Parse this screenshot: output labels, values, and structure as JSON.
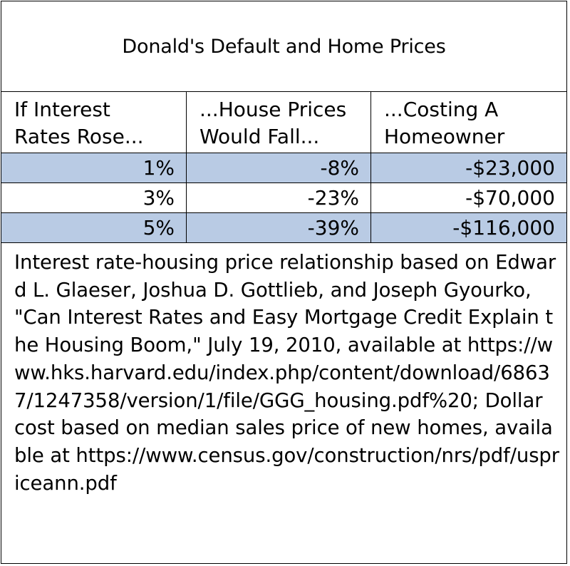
{
  "chart_data": {
    "type": "table",
    "title": "Donald's Default and Home Prices",
    "columns": [
      "If Interest\nRates Rose...",
      "...House Prices\nWould Fall...",
      "...Costing A\nHomeowner"
    ],
    "rows": [
      {
        "rate_rise": "1%",
        "price_fall": "-8%",
        "cost": "-$23,000",
        "shaded": true
      },
      {
        "rate_rise": "3%",
        "price_fall": "-23%",
        "cost": "-$70,000",
        "shaded": false
      },
      {
        "rate_rise": "5%",
        "price_fall": "-39%",
        "cost": "-$116,000",
        "shaded": true
      }
    ],
    "source": "Interest rate-housing price relationship based on Edward L. Glaeser, Joshua D. Gottlieb, and Joseph Gyourko, \"Can Interest Rates and Easy Mortgage Credit Explain the Housing Boom,\" July 19, 2010, available at https://www.hks.harvard.edu/index.php/content/download/68637/1247358/version/1/file/GGG_housing.pdf%20; Dollar cost based on median sales price of new homes, available at https://www.census.gov/construction/nrs/pdf/uspriceann.pdf"
  },
  "colors": {
    "shaded_row": "#b9cbe4",
    "border": "#000000"
  }
}
